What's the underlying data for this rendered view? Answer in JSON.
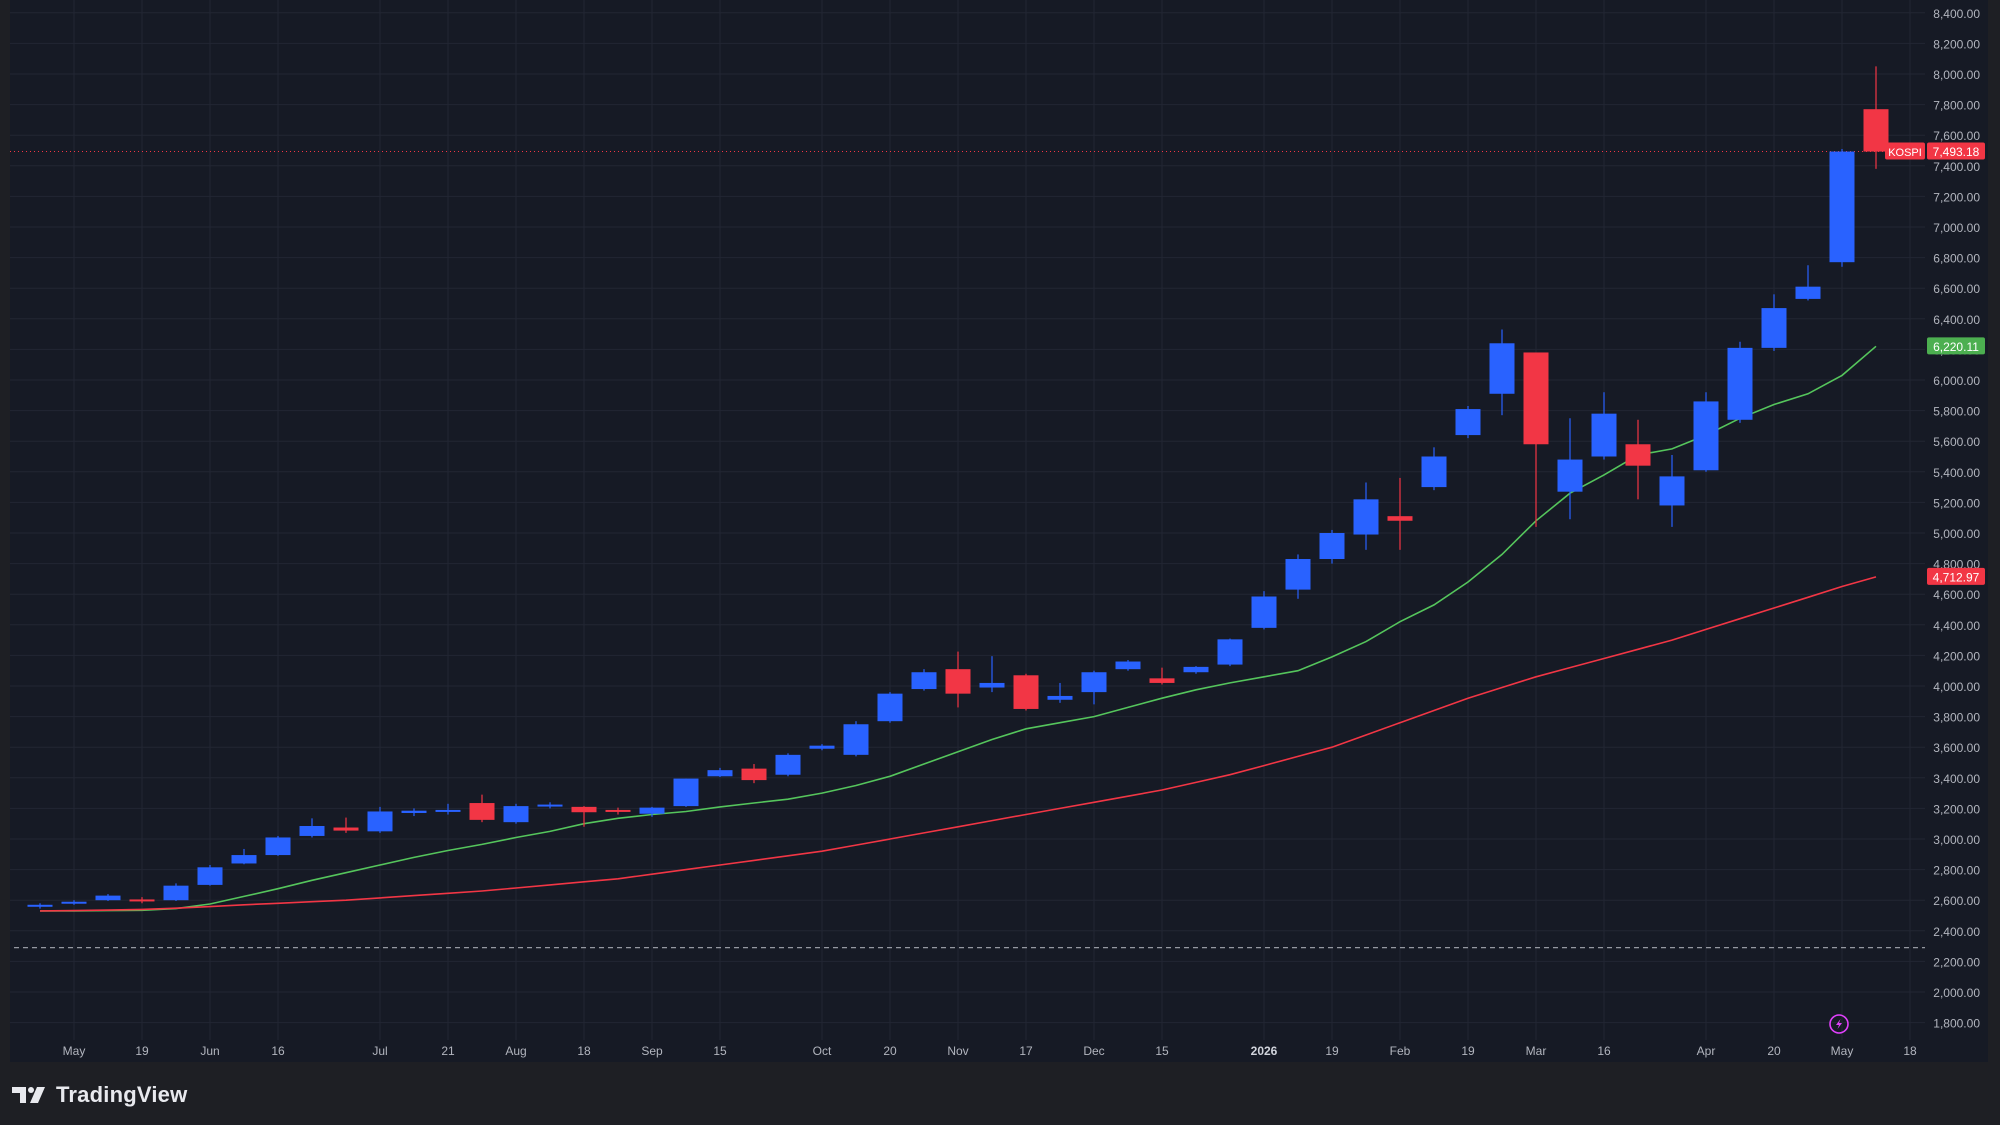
{
  "app": {
    "brand": "TradingView"
  },
  "colors": {
    "background": "#161a25",
    "grid": "#222633",
    "up": "#2962ff",
    "down": "#f23645",
    "ma_fast": "#55c55c",
    "ma_slow": "#f23645",
    "axis_text": "#b2b5be",
    "marker": "#e040fb"
  },
  "chart_data": {
    "type": "candlestick",
    "symbol": "KOSPI",
    "interval": "weekly",
    "grid": true,
    "y_axis_position": "right",
    "ylim": [
      1700,
      8500
    ],
    "y_ticks": [
      "8,400.00",
      "8,200.00",
      "8,000.00",
      "7,800.00",
      "7,600.00",
      "7,400.00",
      "7,200.00",
      "7,000.00",
      "6,800.00",
      "6,600.00",
      "6,400.00",
      "6,200.00",
      "6,000.00",
      "5,800.00",
      "5,600.00",
      "5,400.00",
      "5,200.00",
      "5,000.00",
      "4,800.00",
      "4,600.00",
      "4,400.00",
      "4,200.00",
      "4,000.00",
      "3,800.00",
      "3,600.00",
      "3,400.00",
      "3,200.00",
      "3,000.00",
      "2,800.00",
      "2,600.00",
      "2,400.00",
      "2,200.00",
      "2,000.00",
      "1,800.00"
    ],
    "x_ticks": [
      {
        "label": "May",
        "i": 1
      },
      {
        "label": "19",
        "i": 3
      },
      {
        "label": "Jun",
        "i": 5
      },
      {
        "label": "16",
        "i": 7
      },
      {
        "label": "Jul",
        "i": 10
      },
      {
        "label": "21",
        "i": 12
      },
      {
        "label": "Aug",
        "i": 14
      },
      {
        "label": "18",
        "i": 16
      },
      {
        "label": "Sep",
        "i": 18
      },
      {
        "label": "15",
        "i": 20
      },
      {
        "label": "Oct",
        "i": 23
      },
      {
        "label": "20",
        "i": 25
      },
      {
        "label": "Nov",
        "i": 27
      },
      {
        "label": "17",
        "i": 29
      },
      {
        "label": "Dec",
        "i": 31
      },
      {
        "label": "15",
        "i": 33
      },
      {
        "label": "2026",
        "i": 36,
        "bold": true
      },
      {
        "label": "19",
        "i": 38
      },
      {
        "label": "Feb",
        "i": 40
      },
      {
        "label": "19",
        "i": 42
      },
      {
        "label": "Mar",
        "i": 44
      },
      {
        "label": "16",
        "i": 46
      },
      {
        "label": "Apr",
        "i": 49
      },
      {
        "label": "20",
        "i": 51
      },
      {
        "label": "May",
        "i": 53
      },
      {
        "label": "18",
        "i": 55
      }
    ],
    "candles": [
      {
        "o": 2560,
        "h": 2580,
        "l": 2545,
        "c": 2570
      },
      {
        "o": 2585,
        "h": 2600,
        "l": 2570,
        "c": 2590
      },
      {
        "o": 2600,
        "h": 2640,
        "l": 2595,
        "c": 2630
      },
      {
        "o": 2605,
        "h": 2620,
        "l": 2580,
        "c": 2595
      },
      {
        "o": 2600,
        "h": 2710,
        "l": 2595,
        "c": 2695
      },
      {
        "o": 2700,
        "h": 2830,
        "l": 2695,
        "c": 2815
      },
      {
        "o": 2840,
        "h": 2935,
        "l": 2835,
        "c": 2895
      },
      {
        "o": 2895,
        "h": 3020,
        "l": 2890,
        "c": 3010
      },
      {
        "o": 3020,
        "h": 3135,
        "l": 3010,
        "c": 3085
      },
      {
        "o": 3075,
        "h": 3140,
        "l": 3040,
        "c": 3055
      },
      {
        "o": 3050,
        "h": 3210,
        "l": 3040,
        "c": 3180
      },
      {
        "o": 3170,
        "h": 3200,
        "l": 3150,
        "c": 3185
      },
      {
        "o": 3185,
        "h": 3230,
        "l": 3160,
        "c": 3190
      },
      {
        "o": 3235,
        "h": 3290,
        "l": 3110,
        "c": 3125
      },
      {
        "o": 3110,
        "h": 3230,
        "l": 3100,
        "c": 3215
      },
      {
        "o": 3215,
        "h": 3240,
        "l": 3200,
        "c": 3225
      },
      {
        "o": 3210,
        "h": 3215,
        "l": 3080,
        "c": 3175
      },
      {
        "o": 3190,
        "h": 3205,
        "l": 3160,
        "c": 3180
      },
      {
        "o": 3165,
        "h": 3210,
        "l": 3145,
        "c": 3205
      },
      {
        "o": 3215,
        "h": 3395,
        "l": 3210,
        "c": 3395
      },
      {
        "o": 3410,
        "h": 3465,
        "l": 3405,
        "c": 3450
      },
      {
        "o": 3460,
        "h": 3490,
        "l": 3365,
        "c": 3385
      },
      {
        "o": 3420,
        "h": 3560,
        "l": 3410,
        "c": 3550
      },
      {
        "o": 3590,
        "h": 3620,
        "l": 3580,
        "c": 3610
      },
      {
        "o": 3550,
        "h": 3770,
        "l": 3540,
        "c": 3750
      },
      {
        "o": 3770,
        "h": 3960,
        "l": 3760,
        "c": 3950
      },
      {
        "o": 3980,
        "h": 4110,
        "l": 3970,
        "c": 4090
      },
      {
        "o": 4110,
        "h": 4225,
        "l": 3860,
        "c": 3950
      },
      {
        "o": 3990,
        "h": 4195,
        "l": 3960,
        "c": 4020
      },
      {
        "o": 4070,
        "h": 4080,
        "l": 3840,
        "c": 3850
      },
      {
        "o": 3910,
        "h": 4020,
        "l": 3890,
        "c": 3935
      },
      {
        "o": 3960,
        "h": 4100,
        "l": 3880,
        "c": 4090
      },
      {
        "o": 4110,
        "h": 4170,
        "l": 4100,
        "c": 4160
      },
      {
        "o": 4050,
        "h": 4120,
        "l": 4010,
        "c": 4020
      },
      {
        "o": 4090,
        "h": 4130,
        "l": 4080,
        "c": 4125
      },
      {
        "o": 4140,
        "h": 4310,
        "l": 4130,
        "c": 4305
      },
      {
        "o": 4380,
        "h": 4620,
        "l": 4370,
        "c": 4585
      },
      {
        "o": 4630,
        "h": 4860,
        "l": 4570,
        "c": 4830
      },
      {
        "o": 4830,
        "h": 5020,
        "l": 4800,
        "c": 5000
      },
      {
        "o": 4990,
        "h": 5330,
        "l": 4890,
        "c": 5220
      },
      {
        "o": 5110,
        "h": 5360,
        "l": 4890,
        "c": 5080
      },
      {
        "o": 5300,
        "h": 5560,
        "l": 5280,
        "c": 5500
      },
      {
        "o": 5640,
        "h": 5830,
        "l": 5620,
        "c": 5810
      },
      {
        "o": 5910,
        "h": 6330,
        "l": 5770,
        "c": 6240
      },
      {
        "o": 6180,
        "h": 6180,
        "l": 5040,
        "c": 5580
      },
      {
        "o": 5270,
        "h": 5750,
        "l": 5090,
        "c": 5480
      },
      {
        "o": 5500,
        "h": 5920,
        "l": 5480,
        "c": 5780
      },
      {
        "o": 5580,
        "h": 5740,
        "l": 5220,
        "c": 5440
      },
      {
        "o": 5180,
        "h": 5510,
        "l": 5040,
        "c": 5370
      },
      {
        "o": 5410,
        "h": 5920,
        "l": 5400,
        "c": 5860
      },
      {
        "o": 5740,
        "h": 6250,
        "l": 5720,
        "c": 6210
      },
      {
        "o": 6210,
        "h": 6560,
        "l": 6190,
        "c": 6470
      },
      {
        "o": 6530,
        "h": 6750,
        "l": 6520,
        "c": 6610
      },
      {
        "o": 6770,
        "h": 7510,
        "l": 6740,
        "c": 7493.18
      },
      {
        "o": 7770,
        "h": 8050,
        "l": 7380,
        "c": 7493.18
      }
    ],
    "series": [
      {
        "name": "",
        "role": "ma_fast",
        "values": [
          2530,
          2530,
          2532,
          2534,
          2545,
          2575,
          2625,
          2675,
          2730,
          2780,
          2830,
          2880,
          2925,
          2965,
          3010,
          3050,
          3100,
          3135,
          3160,
          3180,
          3210,
          3235,
          3260,
          3300,
          3350,
          3410,
          3490,
          3570,
          3650,
          3720,
          3760,
          3800,
          3860,
          3920,
          3975,
          4020,
          4060,
          4100,
          4190,
          4290,
          4420,
          4530,
          4680,
          4860,
          5080,
          5260,
          5380,
          5510,
          5550,
          5640,
          5750,
          5840,
          5910,
          6030,
          6220.11
        ]
      },
      {
        "name": "",
        "role": "ma_slow",
        "values": [
          2530,
          2532,
          2535,
          2540,
          2548,
          2558,
          2570,
          2580,
          2590,
          2600,
          2615,
          2630,
          2645,
          2660,
          2680,
          2700,
          2720,
          2740,
          2770,
          2800,
          2830,
          2860,
          2890,
          2920,
          2960,
          3000,
          3040,
          3080,
          3120,
          3160,
          3200,
          3240,
          3280,
          3320,
          3370,
          3420,
          3480,
          3540,
          3600,
          3680,
          3760,
          3840,
          3920,
          3990,
          4060,
          4120,
          4180,
          4240,
          4300,
          4370,
          4440,
          4510,
          4580,
          4650,
          4712.97
        ]
      }
    ],
    "last_price": {
      "label": "KOSPI",
      "value": "7,493.18",
      "y": 7493.18
    },
    "ma_fast_label": {
      "value": "6,220.11",
      "y": 6220.11
    },
    "ma_slow_label": {
      "value": "4,712.97",
      "y": 4712.97
    },
    "dashed_level": 2290
  }
}
